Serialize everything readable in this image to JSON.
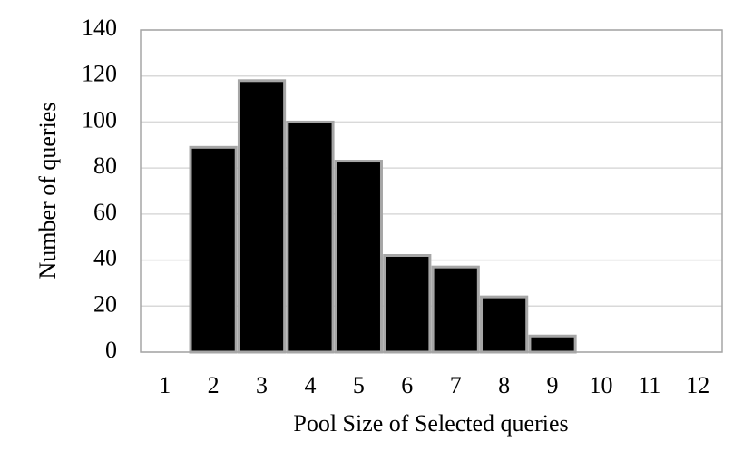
{
  "chart_data": {
    "type": "bar",
    "x_label": "Pool Size of Selected queries",
    "y_label": "Number of queries",
    "categories": [
      "1",
      "2",
      "3",
      "4",
      "5",
      "6",
      "7",
      "8",
      "9",
      "10",
      "11",
      "12"
    ],
    "values": [
      0,
      89,
      118,
      100,
      83,
      42,
      37,
      24,
      7,
      0,
      0,
      0
    ],
    "color": "#000000",
    "edge_color": "#a6a6a6",
    "ylim": [
      0,
      140
    ],
    "yticks": [
      0,
      20,
      40,
      60,
      80,
      100,
      120,
      140
    ],
    "grid": true
  }
}
